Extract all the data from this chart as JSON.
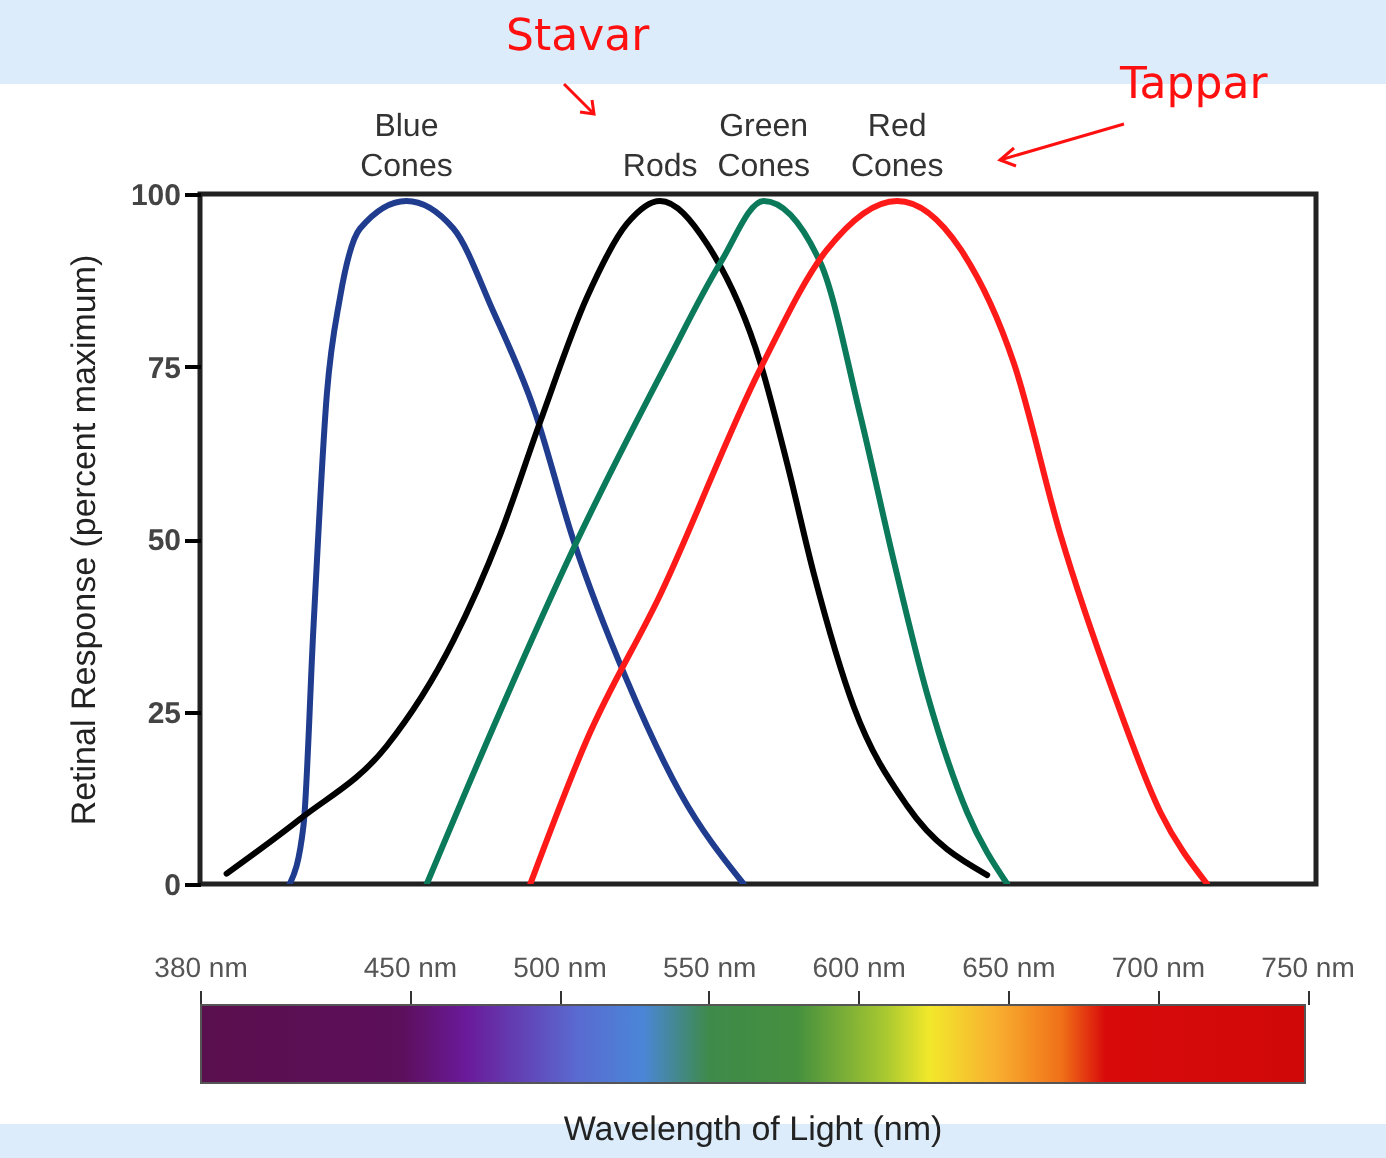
{
  "chart_data": {
    "type": "line",
    "xlabel": "Wavelength of Light (nm)",
    "ylabel": "Retinal Response (percent maximum)",
    "xlim": [
      380,
      753
    ],
    "xticks": [
      {
        "value": 380,
        "label": "380 nm"
      },
      {
        "value": 450,
        "label": "450 nm"
      },
      {
        "value": 500,
        "label": "500 nm"
      },
      {
        "value": 550,
        "label": "550 nm"
      },
      {
        "value": 600,
        "label": "600 nm"
      },
      {
        "value": 650,
        "label": "650 nm"
      },
      {
        "value": 700,
        "label": "700 nm"
      },
      {
        "value": 750,
        "label": "750 nm"
      }
    ],
    "ylim": [
      0,
      100
    ],
    "yticks": [
      0,
      25,
      50,
      75,
      100
    ],
    "series": [
      {
        "name": "Blue Cones",
        "color": "#1f3c8f",
        "x": [
          410,
          414.6,
          417.9,
          422.4,
          426.8,
          433.5,
          449,
          464.7,
          478,
          491.5,
          504.9,
          522.7,
          540.5,
          561.7
        ],
        "values": [
          0,
          8.5,
          37,
          71,
          85,
          95,
          99,
          95,
          83,
          69,
          49.7,
          29.5,
          13.2,
          0
        ]
      },
      {
        "name": "Rods",
        "color": "#000000",
        "x": [
          388.9,
          413.4,
          442.4,
          464.7,
          480.3,
          493.7,
          509.3,
          522.7,
          533.8,
          549.4,
          567.3,
          576.2,
          585.2,
          598.5,
          616.4,
          643.1
        ],
        "values": [
          1.5,
          9.4,
          20,
          35.3,
          50.6,
          67,
          85,
          95.7,
          99,
          92.8,
          75.5,
          61,
          44.9,
          25.7,
          11.3,
          1.3
        ]
      },
      {
        "name": "Green Cones",
        "color": "#0a7a5a",
        "x": [
          455.8,
          478.1,
          504.9,
          536,
          553.9,
          568.4,
          587.4,
          600.7,
          611.9,
          623,
          636.4,
          649.8
        ],
        "values": [
          0,
          22.8,
          48.7,
          75.5,
          90,
          99,
          90,
          67.9,
          46.8,
          27.6,
          10.4,
          0
        ]
      },
      {
        "name": "Red Cones",
        "color": "#ff1a1a",
        "x": [
          490.4,
          509.3,
          533.9,
          567.3,
          589.5,
          613,
          634.2,
          652,
          667.6,
          685.4,
          701,
          716.6
        ],
        "values": [
          0,
          20.9,
          42,
          74.7,
          91.9,
          99,
          92,
          75.5,
          50.6,
          27.6,
          10.4,
          0
        ]
      }
    ],
    "annotations": [
      "Stavar",
      "Tappar"
    ]
  }
}
